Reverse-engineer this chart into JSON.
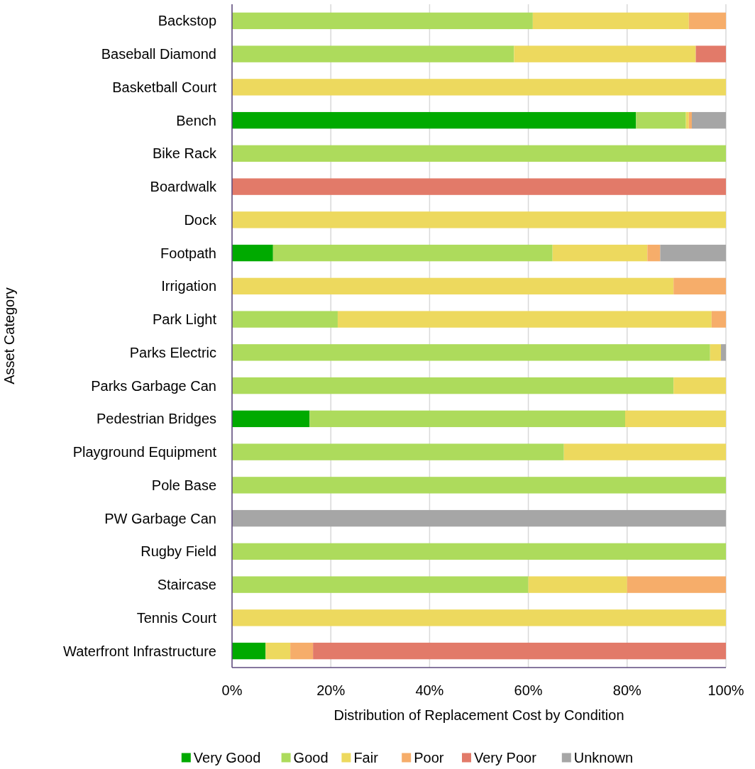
{
  "chart_data": {
    "type": "bar",
    "orientation": "horizontal",
    "stacked": true,
    "xlabel": "Distribution of Replacement Cost by Condition",
    "ylabel": "Asset Category",
    "categories": [
      "Backstop",
      "Baseball Diamond",
      "Basketball Court",
      "Bench",
      "Bike Rack",
      "Boardwalk",
      "Dock",
      "Footpath",
      "Irrigation",
      "Park Light",
      "Parks Electric",
      "Parks Garbage Can",
      "Pedestrian Bridges",
      "Playground Equipment",
      "Pole Base",
      "PW Garbage Can",
      "Rugby Field",
      "Staircase",
      "Tennis Court",
      "Waterfront Infrastructure"
    ],
    "series": [
      {
        "name": "Very Good",
        "color": "#00aa00",
        "values": [
          0,
          0,
          0,
          81.8,
          0,
          0,
          0,
          8.3,
          0,
          0,
          0,
          0,
          15.7,
          0,
          0,
          0,
          0,
          0,
          0,
          6.8
        ]
      },
      {
        "name": "Good",
        "color": "#addb5c",
        "values": [
          60.9,
          57.1,
          0,
          10.1,
          100,
          0,
          0,
          56.6,
          0,
          21.4,
          96.8,
          89.4,
          63.9,
          67.2,
          100,
          0,
          100,
          60,
          0,
          0
        ]
      },
      {
        "name": "Fair",
        "color": "#edd95e",
        "values": [
          31.6,
          36.8,
          100,
          0.6,
          0,
          0,
          100,
          19.2,
          89.4,
          75.7,
          2.2,
          10.6,
          20.4,
          32.8,
          0,
          0,
          0,
          20,
          100,
          5
        ]
      },
      {
        "name": "Poor",
        "color": "#f6ad6a",
        "values": [
          7.5,
          0,
          0,
          0.6,
          0,
          0,
          0,
          2.6,
          10.6,
          2.9,
          0,
          0,
          0,
          0,
          0,
          0,
          0,
          20,
          0,
          4.6
        ]
      },
      {
        "name": "Very Poor",
        "color": "#e27a69",
        "values": [
          0,
          6.1,
          0,
          0,
          0,
          100,
          0,
          0,
          0,
          0,
          0,
          0,
          0,
          0,
          0,
          0,
          0,
          0,
          0,
          83.6
        ]
      },
      {
        "name": "Unknown",
        "color": "#a6a6a6",
        "values": [
          0,
          0,
          0,
          6.9,
          0,
          0,
          0,
          13.3,
          0,
          0,
          1,
          0,
          0,
          0,
          0,
          100,
          0,
          0,
          0,
          0
        ]
      }
    ],
    "xlim": [
      0,
      100
    ],
    "xticks": [
      {
        "value": 0,
        "label": "0%"
      },
      {
        "value": 20,
        "label": "20%"
      },
      {
        "value": 40,
        "label": "40%"
      },
      {
        "value": 60,
        "label": "60%"
      },
      {
        "value": 80,
        "label": "80%"
      },
      {
        "value": 100,
        "label": "100%"
      }
    ],
    "grid": "x",
    "legend": "bottom"
  }
}
